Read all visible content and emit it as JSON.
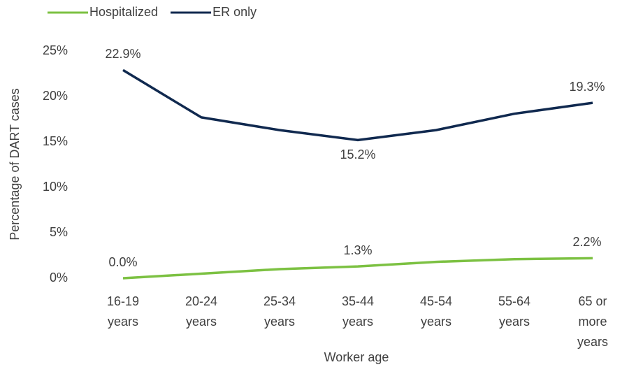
{
  "chart_data": {
    "type": "line",
    "x_label": "Worker age",
    "y_label": "Percentage of DART cases",
    "categories": [
      [
        "16-19",
        "years"
      ],
      [
        "20-24",
        "years"
      ],
      [
        "25-34",
        "years"
      ],
      [
        "35-44",
        "years"
      ],
      [
        "45-54",
        "years"
      ],
      [
        "55-64",
        "years"
      ],
      [
        "65 or",
        "more",
        "years"
      ]
    ],
    "series": [
      {
        "name": "Hospitalized",
        "color": "#7cc142",
        "values": [
          0.0,
          0.5,
          1.0,
          1.3,
          1.8,
          2.1,
          2.2
        ],
        "value_labels": [
          "0.0%",
          null,
          null,
          "1.3%",
          null,
          null,
          "2.2%"
        ]
      },
      {
        "name": "ER only",
        "color": "#10294f",
        "values": [
          22.9,
          17.7,
          16.3,
          15.2,
          16.3,
          18.1,
          19.3
        ],
        "value_labels": [
          "22.9%",
          null,
          null,
          "15.2%",
          null,
          null,
          "19.3%"
        ]
      }
    ],
    "ylim": [
      0,
      25
    ],
    "yticks": [
      {
        "value": 0,
        "label": "0%"
      },
      {
        "value": 5,
        "label": "5%"
      },
      {
        "value": 10,
        "label": "10%"
      },
      {
        "value": 15,
        "label": "15%"
      },
      {
        "value": 20,
        "label": "20%"
      },
      {
        "value": 25,
        "label": "25%"
      }
    ],
    "grid": false,
    "legend": "top-left"
  }
}
